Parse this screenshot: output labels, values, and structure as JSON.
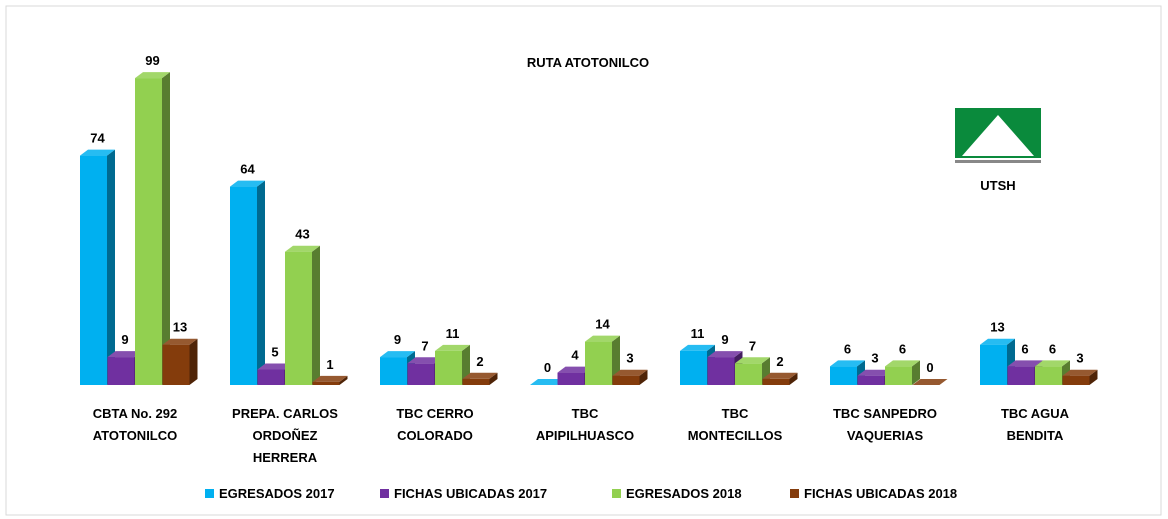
{
  "chart_data": {
    "type": "bar3d",
    "title": "RUTA ATOTONILCO",
    "categories": [
      "CBTA No. 292\nATOTONILCO",
      "PREPA. CARLOS\nORDOÑEZ\nHERRERA",
      "TBC CERRO\nCOLORADO",
      "TBC\nAPIPILHUASCO",
      "TBC\nMONTECILLOS",
      "TBC SANPEDRO\nVAQUERIAS",
      "TBC AGUA\nBENDITA"
    ],
    "series": [
      {
        "name": "EGRESADOS 2017",
        "color": "#00b0f0",
        "values": [
          74,
          64,
          9,
          0,
          11,
          6,
          13
        ]
      },
      {
        "name": "FICHAS UBICADAS 2017",
        "color": "#7030a0",
        "values": [
          9,
          5,
          7,
          4,
          9,
          3,
          6
        ]
      },
      {
        "name": "EGRESADOS 2018",
        "color": "#92d050",
        "values": [
          99,
          43,
          11,
          14,
          7,
          6,
          6
        ]
      },
      {
        "name": "FICHAS UBICADAS 2018",
        "color": "#843c0c",
        "values": [
          13,
          1,
          2,
          3,
          2,
          0,
          3
        ]
      }
    ],
    "ylim": [
      0,
      100
    ],
    "legend": "bottom"
  },
  "logo": {
    "text": "UTSH"
  }
}
